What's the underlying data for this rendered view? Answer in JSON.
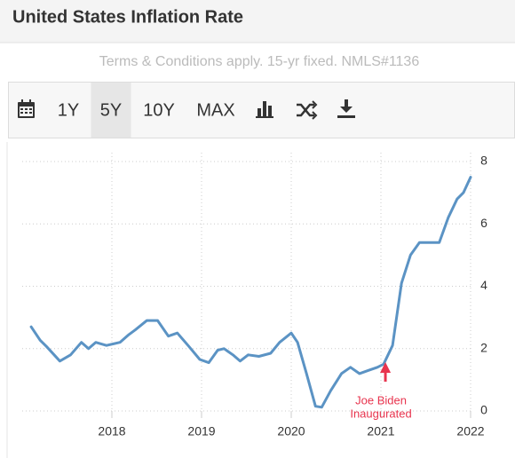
{
  "header": {
    "title": "United States Inflation Rate"
  },
  "disclaimer": "Terms & Conditions apply. 15-yr fixed. NMLS#1136",
  "toolbar": {
    "ranges": [
      "1Y",
      "5Y",
      "10Y",
      "MAX"
    ],
    "selected": 1
  },
  "chart_data": {
    "type": "line",
    "x": [
      2017.1,
      2017.2,
      2017.27,
      2017.42,
      2017.54,
      2017.66,
      2017.74,
      2017.82,
      2017.94,
      2018.09,
      2018.19,
      2018.26,
      2018.39,
      2018.51,
      2018.63,
      2018.73,
      2018.85,
      2018.98,
      2019.08,
      2019.18,
      2019.25,
      2019.35,
      2019.43,
      2019.52,
      2019.64,
      2019.77,
      2019.87,
      2020.0,
      2020.07,
      2020.17,
      2020.27,
      2020.34,
      2020.44,
      2020.56,
      2020.66,
      2020.76,
      2020.86,
      2020.96,
      2021.03,
      2021.13,
      2021.23,
      2021.33,
      2021.43,
      2021.55,
      2021.65,
      2021.75,
      2021.85,
      2021.92,
      2022.0
    ],
    "series": [
      {
        "color": "#5b93c4",
        "values": [
          2.7,
          2.27,
          2.07,
          1.6,
          1.8,
          2.2,
          2.0,
          2.2,
          2.1,
          2.2,
          2.45,
          2.6,
          2.9,
          2.9,
          2.4,
          2.5,
          2.1,
          1.65,
          1.55,
          1.95,
          2.0,
          1.8,
          1.6,
          1.8,
          1.75,
          1.85,
          2.2,
          2.5,
          2.2,
          1.2,
          0.15,
          0.12,
          0.65,
          1.2,
          1.4,
          1.2,
          1.3,
          1.4,
          1.5,
          2.1,
          4.1,
          5.0,
          5.4,
          5.4,
          5.4,
          6.2,
          6.8,
          7.0,
          7.5
        ]
      }
    ],
    "xlim": [
      2017,
      2022
    ],
    "xticks": [
      2018,
      2019,
      2020,
      2021,
      2022
    ],
    "ylim": [
      0,
      8
    ],
    "yticks": [
      0,
      2,
      4,
      6,
      8
    ],
    "grid": true,
    "annotation": {
      "x": 2021.05,
      "color": "#e8344e",
      "lines": [
        "Joe Biden",
        "Inaugurated"
      ]
    }
  }
}
